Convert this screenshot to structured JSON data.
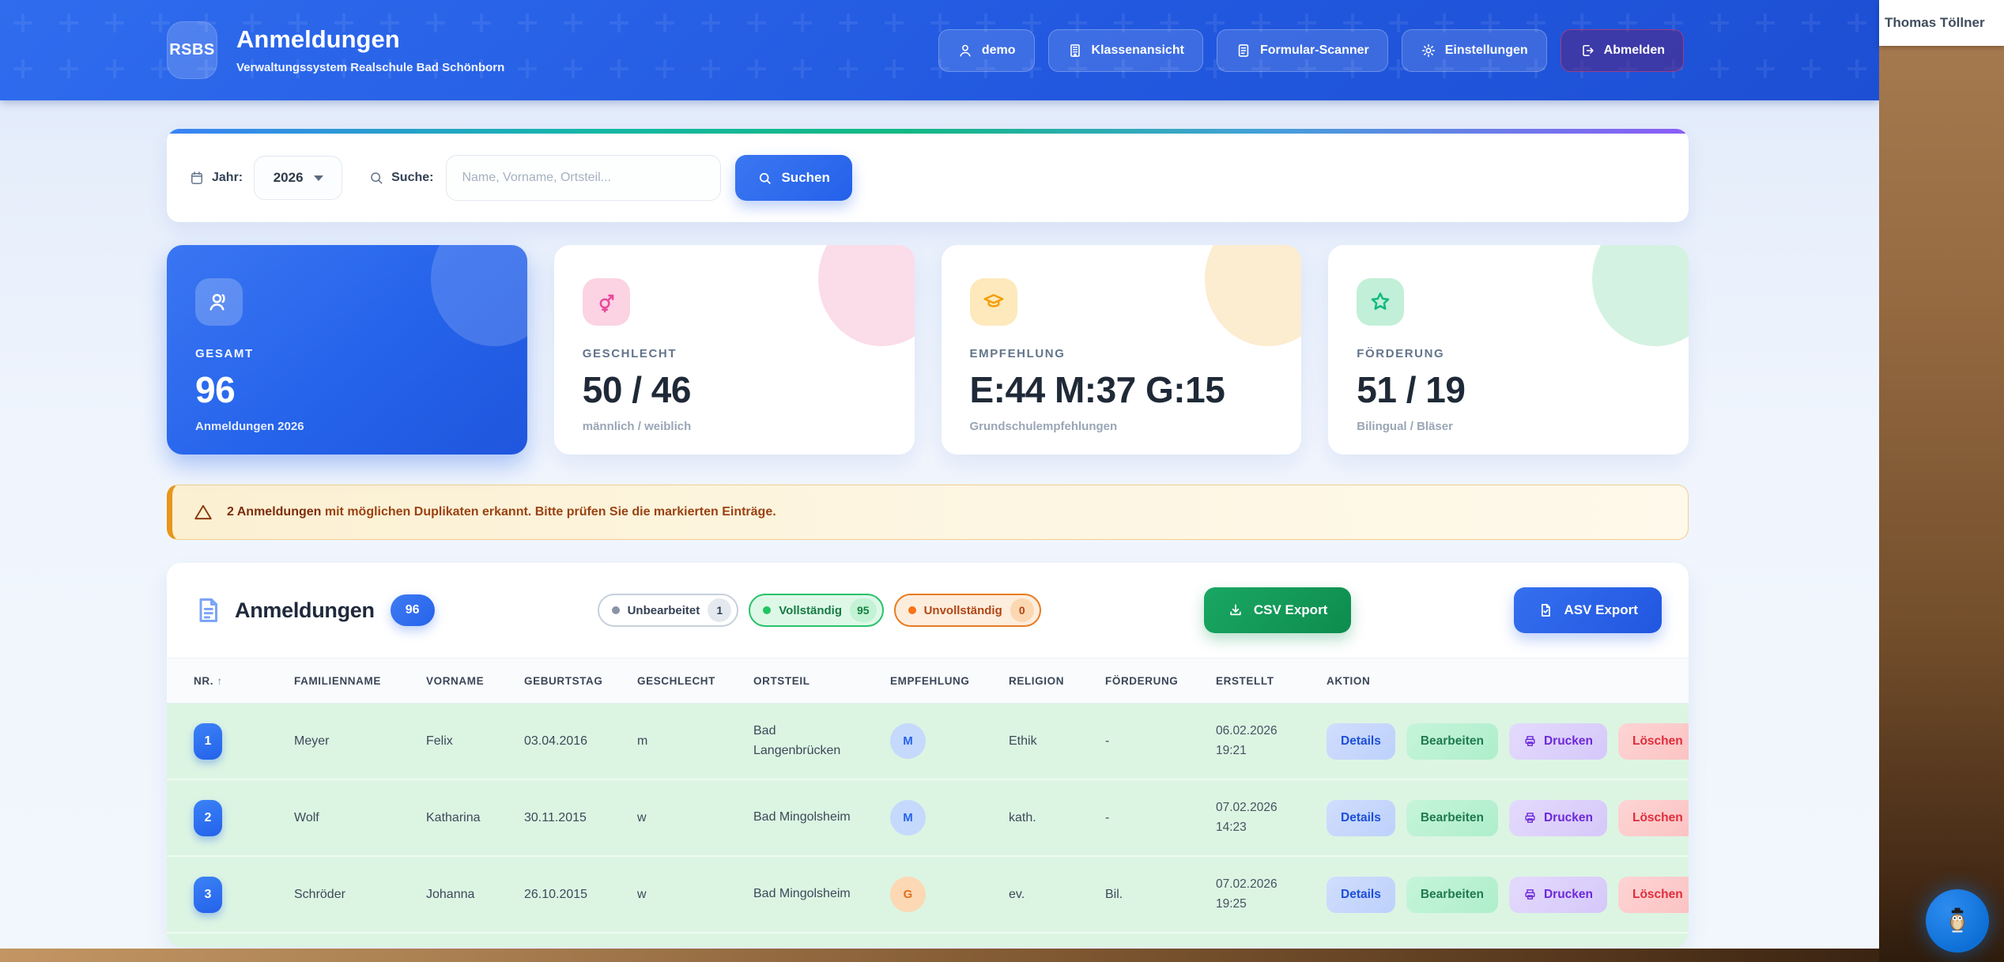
{
  "colors": {
    "accent": "#2563eb",
    "success": "#16a34a",
    "warning": "#f59e0b",
    "danger": "#ef4444",
    "purple": "#8b5cf6",
    "pink": "#ec4899"
  },
  "header": {
    "logo": "RSBS",
    "title": "Anmeldungen",
    "subtitle": "Verwaltungssystem Realschule Bad Schönborn",
    "nav": {
      "user": "demo",
      "class_view": "Klassenansicht",
      "scanner": "Formular-Scanner",
      "settings": "Einstellungen",
      "logout": "Abmelden"
    }
  },
  "filter": {
    "year_label": "Jahr:",
    "year_value": "2026",
    "search_label": "Suche:",
    "search_placeholder": "Name, Vorname, Ortsteil...",
    "search_button": "Suchen"
  },
  "stats": [
    {
      "label": "GESAMT",
      "value": "96",
      "sub": "Anmeldungen 2026",
      "icon": "users-icon",
      "theme": "blue"
    },
    {
      "label": "GESCHLECHT",
      "value": "50 / 46",
      "sub": "männlich / weiblich",
      "icon": "gender-icon",
      "theme": "pink"
    },
    {
      "label": "EMPFEHLUNG",
      "value": "E:44 M:37 G:15",
      "sub": "Grundschulempfehlungen",
      "icon": "graduation-cap-icon",
      "theme": "amber"
    },
    {
      "label": "FÖRDERUNG",
      "value": "51 / 19",
      "sub": "Bilingual / Bläser",
      "icon": "star-icon",
      "theme": "green"
    }
  ],
  "warning": {
    "bold": "2 Anmeldungen",
    "text": " mit möglichen Duplikaten erkannt. Bitte prüfen Sie die markierten Einträge."
  },
  "table": {
    "title": "Anmeldungen",
    "count_badge": "96",
    "status_pills": [
      {
        "label": "Unbearbeitet",
        "count": "1",
        "theme": "gray"
      },
      {
        "label": "Vollständig",
        "count": "95",
        "theme": "green"
      },
      {
        "label": "Unvollständig",
        "count": "0",
        "theme": "orange"
      }
    ],
    "csv_button": "CSV Export",
    "asv_button": "ASV Export",
    "sort_indicator": "↑",
    "columns": [
      "NR.",
      "FAMILIENNAME",
      "VORNAME",
      "GEBURTSTAG",
      "GESCHLECHT",
      "ORTSTEIL",
      "EMPFEHLUNG",
      "RELIGION",
      "FÖRDERUNG",
      "ERSTELLT",
      "AKTION"
    ],
    "actions": {
      "details": "Details",
      "edit": "Bearbeiten",
      "print": "Drucken",
      "delete": "Löschen"
    },
    "rows": [
      {
        "nr": "1",
        "familienname": "Meyer",
        "vorname": "Felix",
        "geburtstag": "03.04.2016",
        "geschlecht": "m",
        "ortsteil": "Bad Langenbrücken",
        "empfehlung": "M",
        "empfehlung_theme": "blue",
        "religion": "Ethik",
        "foerderung": "-",
        "erstellt_datum": "06.02.2026",
        "erstellt_zeit": "19:21"
      },
      {
        "nr": "2",
        "familienname": "Wolf",
        "vorname": "Katharina",
        "geburtstag": "30.11.2015",
        "geschlecht": "w",
        "ortsteil": "Bad Mingolsheim",
        "empfehlung": "M",
        "empfehlung_theme": "blue",
        "religion": "kath.",
        "foerderung": "-",
        "erstellt_datum": "07.02.2026",
        "erstellt_zeit": "14:23"
      },
      {
        "nr": "3",
        "familienname": "Schröder",
        "vorname": "Johanna",
        "geburtstag": "26.10.2015",
        "geschlecht": "w",
        "ortsteil": "Bad Mingolsheim",
        "empfehlung": "G",
        "empfehlung_theme": "orange",
        "religion": "ev.",
        "foerderung": "Bil.",
        "erstellt_datum": "07.02.2026",
        "erstellt_zeit": "19:25"
      }
    ]
  },
  "desktop": {
    "user_name": "Thomas Töllner"
  }
}
